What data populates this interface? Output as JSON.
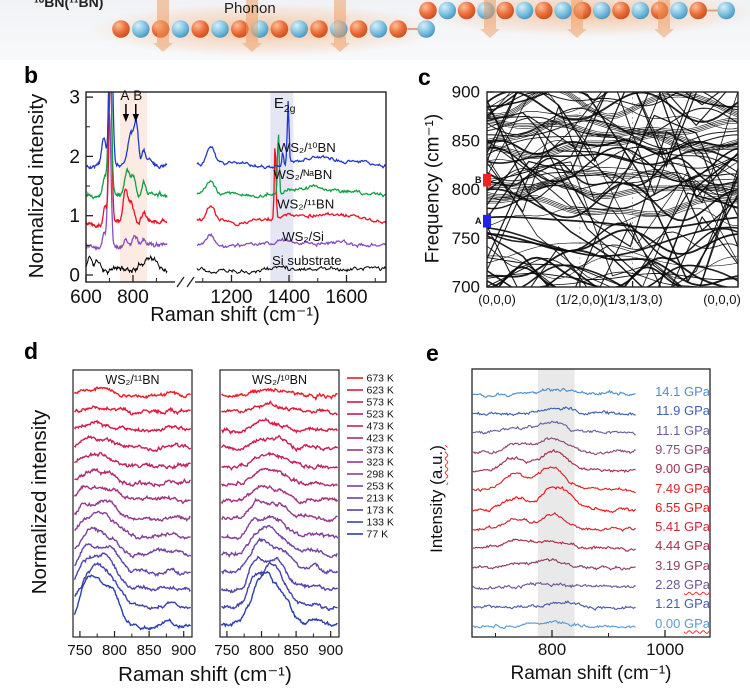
{
  "panel_a": {
    "label": "¹⁰BN(¹¹BN)",
    "phonon_label": "Phonon",
    "atom_colors": {
      "boron": "#ec6f3c",
      "nitrogen": "#7fc3e1"
    },
    "arrow_color": "#f09a5e"
  },
  "chart_data": [
    {
      "id": "b",
      "panel_letter": "b",
      "type": "line",
      "xlabel": "Raman shift (cm⁻¹)",
      "ylabel": "Normalized intensity",
      "xticks": [
        600,
        800,
        1200,
        1400,
        1600
      ],
      "xticks_minor": [
        700,
        900,
        1100,
        1300,
        1500,
        1700
      ],
      "yticks": [
        0,
        1,
        2,
        3
      ],
      "yticks_minor": [
        0.5,
        1.5,
        2.5
      ],
      "x_break": [
        945,
        1080
      ],
      "xlim": [
        600,
        1737
      ],
      "ylim": [
        -0.12,
        3.08
      ],
      "shaded_bands": [
        {
          "x0": 745,
          "x1": 860,
          "color": "#fcebe3"
        },
        {
          "x0": 1335,
          "x1": 1415,
          "color": "#e4e6f3"
        }
      ],
      "arrow_annotations": [
        {
          "text": "A",
          "x": 770
        },
        {
          "text": "B",
          "x": 812
        }
      ],
      "peak_label": {
        "base": "E",
        "sub": "2g",
        "x": 1385
      },
      "series": [
        {
          "label": "Si substrate",
          "color": "#000000",
          "baseline": 0.1,
          "noise": 0.02,
          "seed": 11,
          "peaks": [
            [
              616,
              8,
              0.22
            ],
            [
              648,
              11,
              0.13
            ],
            [
              870,
              26,
              0.22
            ],
            [
              1420,
              160,
              0.04
            ]
          ],
          "label_pos": [
            1462,
            0.24
          ]
        },
        {
          "label": "WS₂/Si",
          "color": "#8b4bbf",
          "baseline": 0.5,
          "noise": 0.016,
          "seed": 12,
          "peaks": [
            [
              700,
              6.5,
              2.2
            ],
            [
              678,
              8,
              0.25
            ],
            [
              770,
              9,
              0.13
            ],
            [
              808,
              10,
              0.16
            ],
            [
              843,
              8,
              0.13
            ],
            [
              1128,
              14,
              0.2
            ],
            [
              1480,
              100,
              0.07
            ]
          ],
          "label_pos": [
            1449,
            0.64
          ]
        },
        {
          "label": "WS₂/¹¹BN",
          "color": "#ee1122",
          "baseline": 0.9,
          "noise": 0.016,
          "seed": 13,
          "peaks": [
            [
              704,
              6,
              2.6
            ],
            [
              682,
              7,
              0.3
            ],
            [
              768,
              9,
              0.52
            ],
            [
              792,
              10,
              0.3
            ],
            [
              845,
              8,
              0.16
            ],
            [
              1128,
              14,
              0.27
            ],
            [
              1352,
              3,
              1.3
            ],
            [
              1490,
              100,
              0.12
            ]
          ],
          "label_pos": [
            1458,
            1.19
          ]
        },
        {
          "label": "WS₂/ᴺᵃBN",
          "color": "#12a045",
          "baseline": 1.35,
          "noise": 0.016,
          "seed": 14,
          "peaks": [
            [
              702,
              6.5,
              2.7
            ],
            [
              680,
              8,
              0.3
            ],
            [
              776,
              10,
              0.38
            ],
            [
              801,
              10,
              0.3
            ],
            [
              845,
              8,
              0.2
            ],
            [
              1128,
              14,
              0.22
            ],
            [
              1363,
              3,
              1.05
            ],
            [
              1490,
              100,
              0.12
            ]
          ],
          "label_pos": [
            1448,
            1.69
          ]
        },
        {
          "label": "WS₂/¹⁰BN",
          "color": "#2238cc",
          "baseline": 1.85,
          "noise": 0.016,
          "seed": 15,
          "peaks": [
            [
              706,
              7,
              2.9
            ],
            [
              676,
              9,
              0.42
            ],
            [
              790,
              11,
              0.5
            ],
            [
              814,
              9,
              0.72
            ],
            [
              846,
              8,
              0.24
            ],
            [
              872,
              7,
              0.12
            ],
            [
              1128,
              14,
              0.28
            ],
            [
              1397,
              3,
              1.0
            ],
            [
              1378,
              2.5,
              0.2
            ],
            [
              1500,
              100,
              0.13
            ]
          ],
          "label_pos": [
            1462,
            2.14
          ]
        }
      ]
    },
    {
      "id": "c",
      "panel_letter": "c",
      "type": "line",
      "ylabel": "Frequency (cm⁻¹)",
      "ylim": [
        700,
        900
      ],
      "yticks": [
        700,
        750,
        800,
        850,
        900
      ],
      "yticks_minor": [
        725,
        775,
        825,
        875
      ],
      "kpoint_labels": [
        "(0,0,0)",
        "(1/2,0,0)",
        "(1/3,1/3,0)",
        "(0,0,0)"
      ],
      "kpoint_pos": [
        0,
        0.37,
        0.58,
        1
      ],
      "kpoint_label_x": [
        87,
        170,
        223,
        312
      ],
      "markers": [
        {
          "label": "B",
          "color": "#ee2222",
          "freq_range": [
            803,
            816
          ]
        },
        {
          "label": "A",
          "color": "#2222ee",
          "freq_range": [
            761,
            774
          ]
        }
      ],
      "note": "dense BN phonon band structure, 700-900 cm-1 (schematic reproduction)",
      "generator": {
        "seed": 9,
        "flat_bands": 34,
        "steep_bands": 24,
        "cluster_bands": 7
      }
    },
    {
      "id": "d",
      "panel_letter": "d",
      "type": "line",
      "xlabel": "Raman shift (cm⁻¹)",
      "ylabel": "Normalized intensity",
      "xticks": [
        750,
        800,
        850,
        900
      ],
      "xticks_minor": [
        775,
        825,
        875
      ],
      "xlim": [
        740,
        912
      ],
      "subpanels": [
        {
          "title": "WS₂/¹¹BN",
          "peak_center": 778
        },
        {
          "title": "WS₂/¹⁰BN",
          "peak_center": 812
        }
      ],
      "temperatures": [
        {
          "label": "673 K",
          "color": "#ed1b24",
          "amp": 5
        },
        {
          "label": "623 K",
          "color": "#e2173a",
          "amp": 6
        },
        {
          "label": "573 K",
          "color": "#d81545",
          "amp": 7.5
        },
        {
          "label": "523 K",
          "color": "#cc1b52",
          "amp": 9
        },
        {
          "label": "473 K",
          "color": "#bf2360",
          "amp": 11
        },
        {
          "label": "423 K",
          "color": "#b02a70",
          "amp": 13
        },
        {
          "label": "373 K",
          "color": "#a23280",
          "amp": 15.5
        },
        {
          "label": "323 K",
          "color": "#93398e",
          "amp": 18.5
        },
        {
          "label": "298 K",
          "color": "#863e98",
          "amp": 21.5
        },
        {
          "label": "253 K",
          "color": "#7742a2",
          "amp": 25
        },
        {
          "label": "213 K",
          "color": "#6544aa",
          "amp": 29
        },
        {
          "label": "173 K",
          "color": "#5244af",
          "amp": 34
        },
        {
          "label": "133 K",
          "color": "#4042b0",
          "amp": 40
        },
        {
          "label": "77 K",
          "color": "#2b3fae",
          "amp": 48
        }
      ],
      "seed": 21
    },
    {
      "id": "e",
      "panel_letter": "e",
      "type": "line",
      "xlabel": "Raman shift (cm⁻¹)",
      "ylabel_base": "Intensity ",
      "ylabel_wavy": "(a.u.)",
      "xticks": [
        800,
        1000
      ],
      "xticks_minor": [
        700,
        900
      ],
      "xlim": [
        658,
        1079
      ],
      "curve_x_range": [
        660,
        948
      ],
      "shaded_band": [
        775,
        840
      ],
      "series": [
        {
          "label": "14.1 GPa",
          "value": "14.1",
          "unit": "GPa",
          "color": "#4d8fd1",
          "amp": 3,
          "center": 808,
          "bump": 0,
          "wavy": false
        },
        {
          "label": "11.9 GPa",
          "value": "11.9",
          "unit": "GPa",
          "color": "#3f63b0",
          "amp": 6,
          "center": 806,
          "bump": 0,
          "wavy": false
        },
        {
          "label": "11.1 GPa",
          "value": "11.1",
          "unit": "GPa",
          "color": "#6f5fa2",
          "amp": 10,
          "center": 794,
          "bump": 3,
          "wavy": false
        },
        {
          "label": "9.75 GPa",
          "value": "9.75",
          "unit": "GPa",
          "color": "#8f4a74",
          "amp": 14,
          "center": 800,
          "bump": 8,
          "wavy": false
        },
        {
          "label": "9.00 GPa",
          "value": "9.00",
          "unit": "GPa",
          "color": "#a52f4e",
          "amp": 19,
          "center": 804,
          "bump": 13,
          "wavy": false
        },
        {
          "label": "7.49 GPa",
          "value": "7.49",
          "unit": "GPa",
          "color": "#e02424",
          "amp": 23,
          "center": 799,
          "bump": 16,
          "wavy": false
        },
        {
          "label": "6.55 GPa",
          "value": "6.55",
          "unit": "GPa",
          "color": "#f11414",
          "amp": 23,
          "center": 806,
          "bump": 12,
          "wavy": false
        },
        {
          "label": "5.41 GPa",
          "value": "5.41",
          "unit": "GPa",
          "color": "#d42433",
          "amp": 15,
          "center": 800,
          "bump": 10,
          "wavy": false
        },
        {
          "label": "4.44 GPa",
          "value": "4.44",
          "unit": "GPa",
          "color": "#b02c48",
          "amp": 10,
          "center": 798,
          "bump": 6,
          "wavy": false
        },
        {
          "label": "3.19 GPa",
          "value": "3.19",
          "unit": "GPa",
          "color": "#8f3f66",
          "amp": 7,
          "center": 795,
          "bump": 3,
          "wavy": false
        },
        {
          "label": "2.28 GPa",
          "value": "2.28",
          "unit": "GPa",
          "color": "#6f5996",
          "amp": 4,
          "center": 800,
          "bump": 0,
          "wavy": true
        },
        {
          "label": "1.21 GPa",
          "value": "1.21",
          "unit": "GPa",
          "color": "#4a5cb0",
          "amp": 3,
          "center": 805,
          "bump": 0,
          "wavy": false
        },
        {
          "label": "0.00 GPa",
          "value": "0.00",
          "unit": "GPa",
          "color": "#5b9bd5",
          "amp": 3,
          "center": 800,
          "bump": 0,
          "wavy": true
        }
      ],
      "seed": 31
    }
  ]
}
